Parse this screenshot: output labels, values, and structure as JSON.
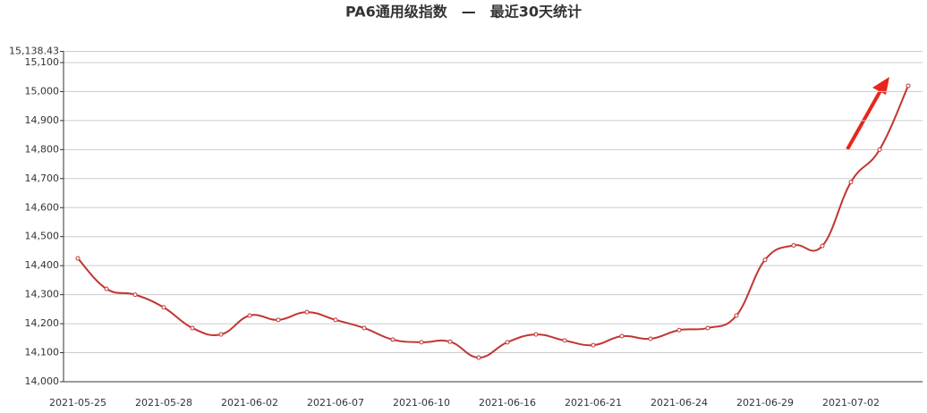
{
  "chart_data": {
    "type": "line",
    "title": "PA6通用级指数　—　最近30天统计",
    "categories": [
      "2021-05-25",
      null,
      null,
      "2021-05-28",
      null,
      null,
      "2021-06-02",
      null,
      null,
      "2021-06-07",
      null,
      null,
      "2021-06-10",
      null,
      null,
      "2021-06-16",
      null,
      null,
      "2021-06-21",
      null,
      null,
      "2021-06-24",
      null,
      null,
      "2021-06-29",
      null,
      null,
      "2021-07-02",
      null,
      null
    ],
    "series": [
      {
        "name": "PA6通用级指数",
        "color": "#c23531",
        "values": [
          14425,
          14320,
          14300,
          14256,
          14185,
          14163,
          14228,
          14213,
          14240,
          14213,
          14185,
          14145,
          14136,
          14138,
          14083,
          14136,
          14163,
          14142,
          14126,
          14157,
          14148,
          14178,
          14185,
          14228,
          14420,
          14470,
          14468,
          14688,
          14800,
          15020
        ]
      }
    ],
    "ylim": [
      14000,
      15138.43
    ],
    "yticks": [
      {
        "value": 14000,
        "label": "14,000"
      },
      {
        "value": 14100,
        "label": "14,100"
      },
      {
        "value": 14200,
        "label": "14,200"
      },
      {
        "value": 14300,
        "label": "14,300"
      },
      {
        "value": 14400,
        "label": "14,400"
      },
      {
        "value": 14500,
        "label": "14,500"
      },
      {
        "value": 14600,
        "label": "14,600"
      },
      {
        "value": 14700,
        "label": "14,700"
      },
      {
        "value": 14800,
        "label": "14,800"
      },
      {
        "value": 14900,
        "label": "14,900"
      },
      {
        "value": 15000,
        "label": "15,000"
      },
      {
        "value": 15100,
        "label": "15,100"
      },
      {
        "value": 15138.43,
        "label": "15,138.43"
      }
    ],
    "grid": true
  }
}
